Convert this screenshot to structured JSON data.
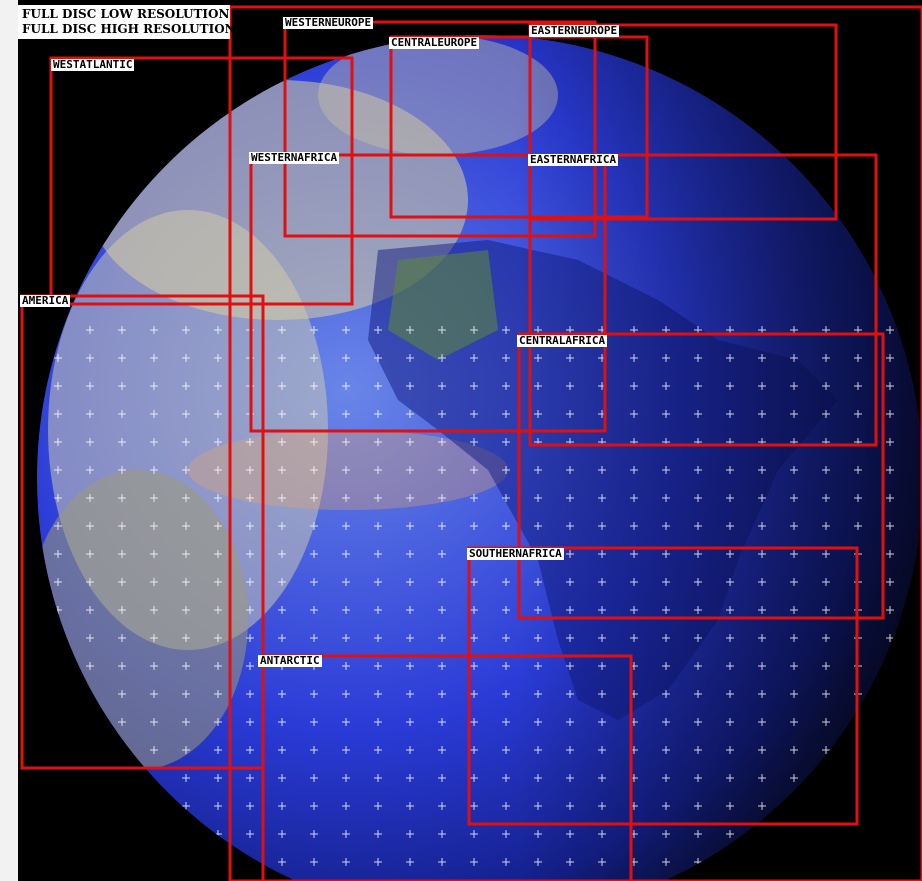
{
  "header": {
    "low_res": "FULL DISC LOW RESOLUTION",
    "high_res": "FULL DISC HIGH RESOLUTION"
  },
  "colors": {
    "background": "#000000",
    "sector_outline": "#e01010",
    "label_bg": "#ffffff",
    "coastline": "#ffffff",
    "ocean": "#1c2fe0",
    "cloud": "#e6e6d8"
  },
  "sectors": {
    "westerneurope": "WESTERNEUROPE",
    "centraleurope": "CENTRALEUROPE",
    "easterneurope": "EASTERNEUROPE",
    "westatlantic": "WESTATLANTIC",
    "westernafrica": "WESTERNAFRICA",
    "easternafrica": "EASTERNAFRICA",
    "america": "AMERICA",
    "centralafrica": "CENTRALAFRICA",
    "southernafrica": "SOUTHERNAFRICA",
    "antarctic": "ANTARCTIC"
  }
}
